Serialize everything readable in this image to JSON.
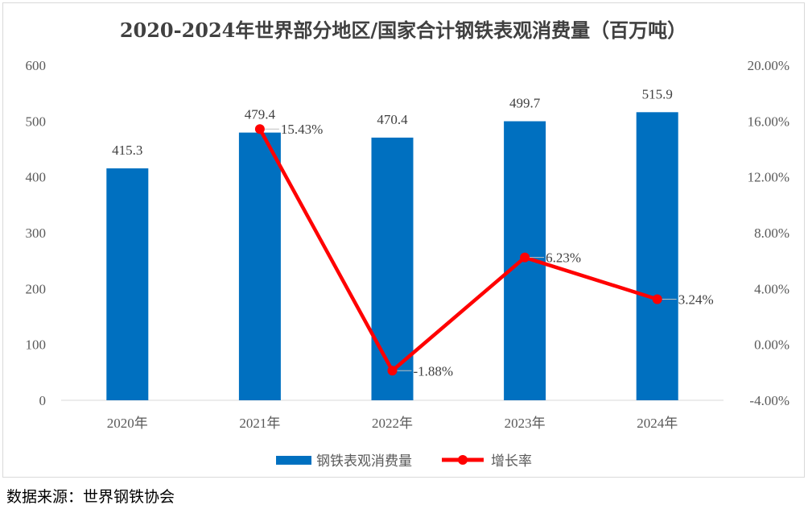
{
  "chart_data": {
    "type": "bar",
    "title": "2020-2024年世界部分地区/国家合计钢铁表观消费量（百万吨）",
    "categories": [
      "2020年",
      "2021年",
      "2022年",
      "2023年",
      "2024年"
    ],
    "series": [
      {
        "name": "钢铁表观消费量",
        "type": "bar",
        "axis": "left",
        "values": [
          415.3,
          479.4,
          470.4,
          499.7,
          515.9
        ],
        "labels": [
          "415.3",
          "479.4",
          "470.4",
          "499.7",
          "515.9"
        ]
      },
      {
        "name": "增长率",
        "type": "line",
        "axis": "right",
        "values": [
          null,
          15.43,
          -1.88,
          6.23,
          3.24
        ],
        "labels": [
          "",
          "15.43%",
          "-1.88%",
          "6.23%",
          "3.24%"
        ]
      }
    ],
    "y_left": {
      "min": 0,
      "max": 600,
      "ticks": [
        "0",
        "100",
        "200",
        "300",
        "400",
        "500",
        "600"
      ]
    },
    "y_right": {
      "min": -4,
      "max": 20,
      "ticks": [
        "-4.00%",
        "0.00%",
        "4.00%",
        "8.00%",
        "12.00%",
        "16.00%",
        "20.00%"
      ]
    },
    "legend_position": "bottom",
    "colors": {
      "bar": "#0070C0",
      "line": "#FF0000"
    }
  },
  "source_note": "数据来源：世界钢铁协会"
}
